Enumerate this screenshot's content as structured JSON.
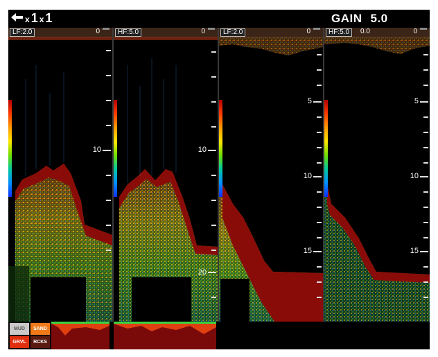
{
  "topbar": {
    "zoom_main": "1",
    "zoom_sub": "x",
    "zoom_second": "1",
    "gain_label": "GAIN",
    "gain_value": "5.0",
    "back_icon": "arrow-left-icon"
  },
  "panels": [
    {
      "label": "LF:2.0",
      "zero": "0",
      "extra": "",
      "depth_labels": [
        {
          "text": "10"
        }
      ]
    },
    {
      "label": "HF:5.0",
      "zero": "0",
      "extra": "",
      "depth_labels": [
        {
          "text": "10"
        },
        {
          "text": "20"
        }
      ]
    },
    {
      "label": "LF:2.0",
      "zero": "0",
      "extra": "",
      "depth_labels": [
        {
          "text": "5"
        },
        {
          "text": "10"
        },
        {
          "text": "15"
        }
      ]
    },
    {
      "label": "HF:5.0",
      "zero": "0",
      "extra": "0.0",
      "depth_labels": [
        {
          "text": "5"
        },
        {
          "text": "10"
        },
        {
          "text": "15"
        }
      ]
    }
  ],
  "seabed": {
    "mud": "MUD",
    "sand": "SAND",
    "gravel": "GRVL",
    "rocks": "RCKS"
  },
  "colors": {
    "background": "#000000",
    "bottom_echo": "#8a0c08",
    "header": "#3b2418"
  }
}
